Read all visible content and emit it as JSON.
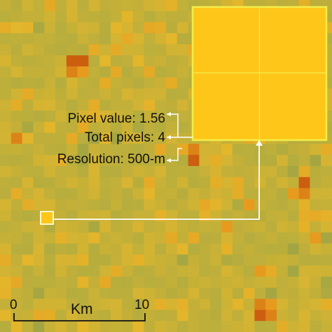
{
  "inset": {
    "pixel_value_text": "Pixel value: 1.56",
    "total_pixels_text": "Total pixels: 4",
    "resolution_text": "Resolution: 500-m",
    "pixel_color": "#ffc61a",
    "border_color": "#f2ee49"
  },
  "scale_bar": {
    "start_label": "0",
    "end_label": "10",
    "unit_label": "Km"
  },
  "palette": {
    "base": "#b5ad3e",
    "yellow": "#e3b72c",
    "orange": "#e79b1e",
    "red_orange": "#cc5e10",
    "leader_line": "#ffffff"
  }
}
